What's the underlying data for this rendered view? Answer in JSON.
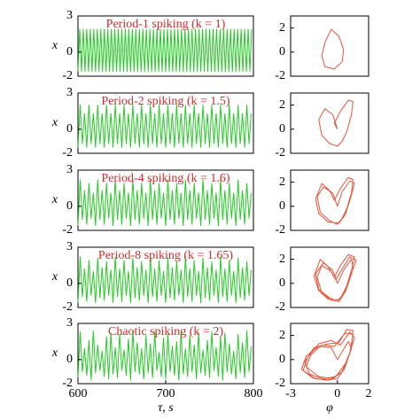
{
  "chart_data": [
    {
      "type": "line",
      "title": "Period-1 spiking (k = 1)",
      "ylabel": "x",
      "color": "#22cc22",
      "xlim": [
        600,
        800
      ],
      "ylim": [
        -2,
        3
      ],
      "yticks": [
        -2,
        0,
        3
      ],
      "x": [
        600,
        602,
        604,
        606,
        608,
        610,
        612,
        614,
        616,
        618,
        620,
        622,
        624,
        626,
        628,
        630,
        632,
        634,
        636,
        638,
        640,
        642,
        644,
        646,
        648,
        650,
        652,
        654,
        656,
        658,
        660,
        662,
        664,
        666,
        668,
        670,
        672,
        674,
        676,
        678,
        680,
        682,
        684,
        686,
        688,
        690,
        692,
        694,
        696,
        698,
        700,
        702,
        704,
        706,
        708,
        710,
        712,
        714,
        716,
        718,
        720,
        722,
        724,
        726,
        728,
        730,
        732,
        734,
        736,
        738,
        740,
        742,
        744,
        746,
        748,
        750,
        752,
        754,
        756,
        758,
        760,
        762,
        764,
        766,
        768,
        770,
        772,
        774,
        776,
        778,
        780,
        782,
        784,
        786,
        788,
        790,
        792,
        794,
        796,
        798
      ],
      "values": [
        -1.6,
        1.9,
        -1.6,
        1.9,
        -1.6,
        1.9,
        -1.6,
        1.9,
        -1.6,
        1.9,
        -1.6,
        1.9,
        -1.6,
        1.9,
        -1.6,
        1.9,
        -1.6,
        1.9,
        -1.6,
        1.9,
        -1.6,
        1.9,
        -1.6,
        1.9,
        -1.6,
        1.9,
        -1.6,
        1.9,
        -1.6,
        1.9,
        -1.6,
        1.9,
        -1.6,
        1.9,
        -1.6,
        1.9,
        -1.6,
        1.9,
        -1.6,
        1.9,
        -1.6,
        1.9,
        -1.6,
        1.9,
        -1.6,
        1.9,
        -1.6,
        1.9,
        -1.6,
        1.9,
        -1.6,
        1.9,
        -1.6,
        1.9,
        -1.6,
        1.9,
        -1.6,
        1.9,
        -1.6,
        1.9,
        -1.6,
        1.9,
        -1.6,
        1.9,
        -1.6,
        1.9,
        -1.6,
        1.9,
        -1.6,
        1.9,
        -1.6,
        1.9,
        -1.6,
        1.9,
        -1.6,
        1.9,
        -1.6,
        1.9,
        -1.6,
        1.9,
        -1.6,
        1.9,
        -1.6,
        1.9,
        -1.6,
        1.9,
        -1.6,
        1.9,
        -1.6,
        1.9,
        -1.6,
        1.9,
        -1.6,
        1.9,
        -1.6,
        1.9,
        -1.6,
        1.9,
        -1.6,
        1.9
      ]
    },
    {
      "type": "line",
      "color": "#e8553a",
      "xlim": [
        -3,
        2
      ],
      "ylim": [
        -2,
        3
      ],
      "yticks": [
        -2,
        0,
        2
      ],
      "x": [
        -0.4,
        0.1,
        0.4,
        0.3,
        -0.2,
        -0.8,
        -1.0,
        -0.8,
        -0.4
      ],
      "values": [
        1.9,
        1.3,
        0.2,
        -0.8,
        -1.4,
        -1.2,
        -0.3,
        0.8,
        1.9
      ]
    },
    {
      "type": "line",
      "title": "Period-2 spiking (k = 1.5)",
      "ylabel": "x",
      "color": "#22cc22",
      "xlim": [
        600,
        800
      ],
      "ylim": [
        -2,
        3
      ],
      "yticks": [
        -2,
        0,
        3
      ],
      "x": [
        600,
        602.5,
        605,
        607.5,
        610,
        612.5,
        615,
        617.5,
        620,
        622.5,
        625,
        627.5,
        630,
        632.5,
        635,
        637.5,
        640,
        642.5,
        645,
        647.5,
        650,
        652.5,
        655,
        657.5,
        660,
        662.5,
        665,
        667.5,
        670,
        672.5,
        675,
        677.5,
        680,
        682.5,
        685,
        687.5,
        690,
        692.5,
        695,
        697.5,
        700,
        702.5,
        705,
        707.5,
        710,
        712.5,
        715,
        717.5,
        720,
        722.5,
        725,
        727.5,
        730,
        732.5,
        735,
        737.5,
        740,
        742.5,
        745,
        747.5,
        750,
        752.5,
        755,
        757.5,
        760,
        762.5,
        765,
        767.5,
        770,
        772.5,
        775,
        777.5,
        780,
        782.5,
        785,
        787.5,
        790,
        792.5,
        795,
        797.5
      ],
      "values": [
        -1.5,
        2.0,
        -1.2,
        1.3,
        -1.5,
        2.0,
        -1.2,
        1.3,
        -1.5,
        2.0,
        -1.2,
        1.3,
        -1.5,
        2.0,
        -1.2,
        1.3,
        -1.5,
        2.0,
        -1.2,
        1.3,
        -1.5,
        2.0,
        -1.2,
        1.3,
        -1.5,
        2.0,
        -1.2,
        1.3,
        -1.5,
        2.0,
        -1.2,
        1.3,
        -1.5,
        2.0,
        -1.2,
        1.3,
        -1.5,
        2.0,
        -1.2,
        1.3,
        -1.5,
        2.0,
        -1.2,
        1.3,
        -1.5,
        2.0,
        -1.2,
        1.3,
        -1.5,
        2.0,
        -1.2,
        1.3,
        -1.5,
        2.0,
        -1.2,
        1.3,
        -1.5,
        2.0,
        -1.2,
        1.3,
        -1.5,
        2.0,
        -1.2,
        1.3,
        -1.5,
        2.0,
        -1.2,
        1.3,
        -1.5,
        2.0,
        -1.2,
        1.3,
        -1.5,
        2.0,
        -1.2,
        1.3,
        -1.5,
        2.0,
        -1.2,
        1.3
      ]
    },
    {
      "type": "line",
      "color": "#e8553a",
      "xlim": [
        -3,
        2
      ],
      "ylim": [
        -2,
        3
      ],
      "yticks": [
        -2,
        0,
        2
      ],
      "x": [
        0,
        -0.3,
        -0.8,
        -1.2,
        -1.0,
        -0.5,
        0,
        0.3,
        0.6,
        0.9,
        1.0,
        0.7,
        0.2,
        -0.2,
        0
      ],
      "values": [
        0,
        1.2,
        1.7,
        0.8,
        -0.5,
        -1.2,
        -1.4,
        -1.0,
        -0.2,
        1.2,
        2.3,
        2.4,
        1.5,
        0.5,
        0
      ]
    },
    {
      "type": "line",
      "title": "Period-4 spiking (k = 1.6)",
      "ylabel": "x",
      "color": "#22cc22",
      "xlim": [
        600,
        800
      ],
      "ylim": [
        -2,
        3
      ],
      "yticks": [
        -2,
        0,
        3
      ],
      "x": [
        600,
        602.5,
        605,
        607.5,
        610,
        612.5,
        615,
        617.5,
        620,
        622.5,
        625,
        627.5,
        630,
        632.5,
        635,
        637.5,
        640,
        642.5,
        645,
        647.5,
        650,
        652.5,
        655,
        657.5,
        660,
        662.5,
        665,
        667.5,
        670,
        672.5,
        675,
        677.5,
        680,
        682.5,
        685,
        687.5,
        690,
        692.5,
        695,
        697.5,
        700,
        702.5,
        705,
        707.5,
        710,
        712.5,
        715,
        717.5,
        720,
        722.5,
        725,
        727.5,
        730,
        732.5,
        735,
        737.5,
        740,
        742.5,
        745,
        747.5,
        750,
        752.5,
        755,
        757.5,
        760,
        762.5,
        765,
        767.5,
        770,
        772.5,
        775,
        777.5,
        780,
        782.5,
        785,
        787.5,
        790,
        792.5,
        795,
        797.5
      ],
      "values": [
        -1.6,
        2.2,
        -1.1,
        1.3,
        -1.5,
        1.9,
        -1.0,
        1.1,
        -1.6,
        2.2,
        -1.1,
        1.3,
        -1.5,
        1.9,
        -1.0,
        1.1,
        -1.6,
        2.2,
        -1.1,
        1.3,
        -1.5,
        1.9,
        -1.0,
        1.1,
        -1.6,
        2.2,
        -1.1,
        1.3,
        -1.5,
        1.9,
        -1.0,
        1.1,
        -1.6,
        2.2,
        -1.1,
        1.3,
        -1.5,
        1.9,
        -1.0,
        1.1,
        -1.6,
        2.2,
        -1.1,
        1.3,
        -1.5,
        1.9,
        -1.0,
        1.1,
        -1.6,
        2.2,
        -1.1,
        1.3,
        -1.5,
        1.9,
        -1.0,
        1.1,
        -1.6,
        2.2,
        -1.1,
        1.3,
        -1.5,
        1.9,
        -1.0,
        1.1,
        -1.6,
        2.2,
        -1.1,
        1.3,
        -1.5,
        1.9,
        -1.0,
        1.1,
        -1.6,
        2.2,
        -1.1,
        1.3,
        -1.5,
        1.9,
        -1.0,
        1.1
      ]
    },
    {
      "type": "line",
      "color": "#e8553a",
      "xlim": [
        -3,
        2
      ],
      "ylim": [
        -2,
        3
      ],
      "yticks": [
        -2,
        0,
        2
      ],
      "x": [
        0,
        -0.3,
        -0.9,
        -1.3,
        -1.1,
        -0.5,
        0,
        0.3,
        0.6,
        0.9,
        1.0,
        0.7,
        0.2,
        -0.2,
        -0.5,
        -1.0,
        -1.4,
        -1.2,
        -0.6,
        0.1,
        0.5,
        0.8,
        1.1,
        0.8,
        0.3,
        0
      ],
      "values": [
        0,
        1.1,
        1.6,
        0.8,
        -0.5,
        -1.2,
        -1.5,
        -1.0,
        -0.2,
        1.1,
        2.2,
        2.4,
        1.5,
        0.5,
        1.3,
        1.9,
        0.6,
        -0.6,
        -1.3,
        -1.4,
        -0.7,
        0.5,
        1.9,
        2.1,
        1.2,
        0
      ]
    },
    {
      "type": "line",
      "title": "Period-8 spiking (k = 1.65)",
      "ylabel": "x",
      "color": "#22cc22",
      "xlim": [
        600,
        800
      ],
      "ylim": [
        -2,
        3
      ],
      "yticks": [
        -2,
        0,
        3
      ],
      "x": [
        600,
        602.5,
        605,
        607.5,
        610,
        612.5,
        615,
        617.5,
        620,
        622.5,
        625,
        627.5,
        630,
        632.5,
        635,
        637.5,
        640,
        642.5,
        645,
        647.5,
        650,
        652.5,
        655,
        657.5,
        660,
        662.5,
        665,
        667.5,
        670,
        672.5,
        675,
        677.5,
        680,
        682.5,
        685,
        687.5,
        690,
        692.5,
        695,
        697.5,
        700,
        702.5,
        705,
        707.5,
        710,
        712.5,
        715,
        717.5,
        720,
        722.5,
        725,
        727.5,
        730,
        732.5,
        735,
        737.5,
        740,
        742.5,
        745,
        747.5,
        750,
        752.5,
        755,
        757.5,
        760,
        762.5,
        765,
        767.5,
        770,
        772.5,
        775,
        777.5,
        780,
        782.5,
        785,
        787.5,
        790,
        792.5,
        795,
        797.5
      ],
      "values": [
        -1.6,
        2.2,
        -1.1,
        1.2,
        -1.5,
        1.9,
        -1.0,
        1.0,
        -1.6,
        2.1,
        -1.2,
        1.3,
        -1.4,
        1.8,
        -1.0,
        1.1,
        -1.6,
        2.2,
        -1.1,
        1.2,
        -1.5,
        1.9,
        -1.0,
        1.0,
        -1.6,
        2.1,
        -1.2,
        1.3,
        -1.4,
        1.8,
        -1.0,
        1.1,
        -1.6,
        2.2,
        -1.1,
        1.2,
        -1.5,
        1.9,
        -1.0,
        1.0,
        -1.6,
        2.1,
        -1.2,
        1.3,
        -1.4,
        1.8,
        -1.0,
        1.1,
        -1.6,
        2.2,
        -1.1,
        1.2,
        -1.5,
        1.9,
        -1.0,
        1.0,
        -1.6,
        2.1,
        -1.2,
        1.3,
        -1.4,
        1.8,
        -1.0,
        1.1,
        -1.6,
        2.2,
        -1.1,
        1.2,
        -1.5,
        1.9,
        -1.0,
        1.0,
        -1.6,
        2.1,
        -1.2,
        1.3,
        -1.4,
        1.8,
        -1.0,
        1.1
      ]
    },
    {
      "type": "line",
      "color": "#e8553a",
      "xlim": [
        -3,
        2
      ],
      "ylim": [
        -2,
        3
      ],
      "yticks": [
        -2,
        0,
        2
      ],
      "x": [
        0,
        -0.3,
        -0.9,
        -1.4,
        -1.2,
        -0.5,
        0,
        0.3,
        0.6,
        0.9,
        1.1,
        0.7,
        0.2,
        -0.2,
        -0.6,
        -1.1,
        -1.5,
        -1.2,
        -0.6,
        0.1,
        0.5,
        0.8,
        1.2,
        0.8,
        0.3,
        -0.1,
        -0.4,
        -1.0,
        -1.3,
        -1.0,
        -0.4,
        0.2,
        0.6,
        1.0,
        0.9,
        0.4,
        0
      ],
      "values": [
        0,
        1.1,
        1.7,
        0.8,
        -0.5,
        -1.2,
        -1.5,
        -1.0,
        -0.2,
        1.1,
        2.2,
        2.4,
        1.5,
        0.5,
        1.4,
        2.0,
        0.6,
        -0.6,
        -1.3,
        -1.5,
        -0.7,
        0.5,
        1.9,
        2.2,
        1.2,
        0.3,
        1.0,
        1.5,
        0.5,
        -0.8,
        -1.4,
        -1.3,
        -0.4,
        1.2,
        2.0,
        1.1,
        0
      ]
    },
    {
      "type": "line",
      "title": "Chaotic spiking (k = 2)",
      "ylabel": "x",
      "xlabel": "τ, s",
      "color": "#22cc22",
      "xlim": [
        600,
        800
      ],
      "ylim": [
        -2,
        3
      ],
      "yticks": [
        -2,
        0,
        3
      ],
      "xticks": [
        600,
        700,
        800
      ],
      "x": [
        600,
        602.5,
        605,
        607.5,
        610,
        612.5,
        615,
        617.5,
        620,
        622.5,
        625,
        627.5,
        630,
        632.5,
        635,
        637.5,
        640,
        642.5,
        645,
        647.5,
        650,
        652.5,
        655,
        657.5,
        660,
        662.5,
        665,
        667.5,
        670,
        672.5,
        675,
        677.5,
        680,
        682.5,
        685,
        687.5,
        690,
        692.5,
        695,
        697.5,
        700,
        702.5,
        705,
        707.5,
        710,
        712.5,
        715,
        717.5,
        720,
        722.5,
        725,
        727.5,
        730,
        732.5,
        735,
        737.5,
        740,
        742.5,
        745,
        747.5,
        750,
        752.5,
        755,
        757.5,
        760,
        762.5,
        765,
        767.5,
        770,
        772.5,
        775,
        777.5,
        780,
        782.5,
        785,
        787.5,
        790,
        792.5,
        795,
        797.5
      ],
      "values": [
        -1.5,
        2.3,
        -1.0,
        0.9,
        -1.3,
        1.6,
        -1.7,
        2.4,
        -1.1,
        1.2,
        -0.9,
        0.7,
        -1.4,
        1.9,
        -1.6,
        2.2,
        -1.2,
        1.0,
        -1.5,
        2.1,
        -0.9,
        0.8,
        -1.3,
        1.7,
        -1.7,
        2.4,
        -1.0,
        1.4,
        -1.2,
        0.9,
        -1.6,
        2.0,
        -1.1,
        1.3,
        -1.5,
        2.3,
        -0.9,
        0.6,
        -1.4,
        1.8,
        -1.6,
        2.1,
        -1.0,
        1.1,
        -1.3,
        1.5,
        -1.7,
        2.4,
        -1.2,
        0.9,
        -1.4,
        2.0,
        -1.0,
        1.2,
        -1.6,
        2.2,
        -1.1,
        0.8,
        -1.3,
        1.6,
        -1.5,
        2.3,
        -0.9,
        1.0,
        -1.4,
        1.9,
        -1.7,
        2.2,
        -1.0,
        1.3,
        -1.2,
        0.7,
        -1.6,
        2.1,
        -1.1,
        1.4,
        -1.5,
        2.4,
        -1.0,
        1.1
      ]
    },
    {
      "type": "line",
      "xlabel": "φ",
      "color": "#e8553a",
      "xlim": [
        -3,
        2
      ],
      "ylim": [
        -2,
        3
      ],
      "yticks": [
        -2,
        0,
        2
      ],
      "xticks": [
        -3,
        0,
        2
      ],
      "x": [
        0,
        -0.4,
        -1.2,
        -2.0,
        -2.3,
        -1.6,
        -0.8,
        0,
        0.5,
        0.9,
        1.0,
        0.6,
        0.1,
        -0.6,
        -1.5,
        -2.1,
        -1.8,
        -0.9,
        -0.1,
        0.6,
        1.1,
        0.8,
        0.2,
        -0.4,
        -1.2,
        -1.9,
        -2.2,
        -1.4,
        -0.5,
        0.3,
        0.8,
        1.0,
        0.5,
        -0.2,
        -1.0,
        -1.7,
        -2.0,
        -1.2,
        -0.3,
        0.4,
        0.9,
        0.7,
        0
      ],
      "values": [
        0,
        1.0,
        1.1,
        0.3,
        -0.8,
        -1.5,
        -1.7,
        -1.6,
        -0.6,
        1.0,
        2.4,
        2.5,
        1.4,
        1.3,
        1.0,
        -0.2,
        -1.2,
        -1.6,
        -1.4,
        -0.2,
        1.8,
        2.3,
        1.2,
        1.6,
        1.3,
        0.2,
        -0.9,
        -1.6,
        -1.7,
        -1.0,
        0.6,
        2.1,
        2.2,
        1.1,
        1.2,
        0.4,
        -0.6,
        -1.4,
        -1.6,
        -0.9,
        0.9,
        1.5,
        0
      ]
    }
  ]
}
